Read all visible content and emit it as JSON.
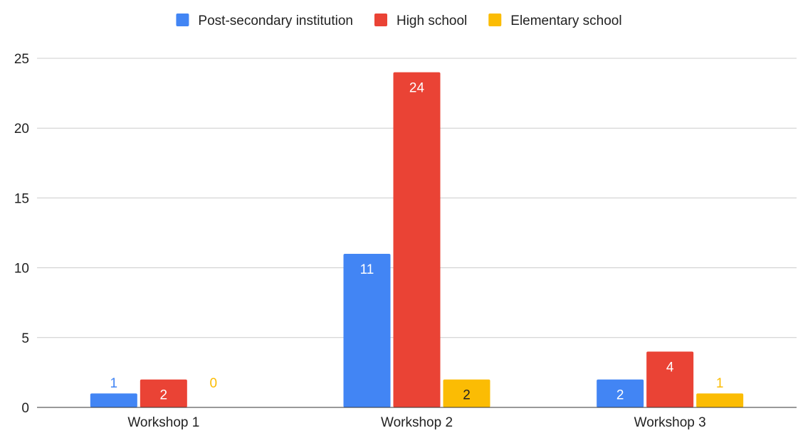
{
  "chart_data": {
    "type": "bar",
    "title": "",
    "xlabel": "",
    "ylabel": "",
    "categories": [
      "Workshop 1",
      "Workshop 2",
      "Workshop 3"
    ],
    "ylim": [
      0,
      25
    ],
    "yticks": [
      0,
      5,
      10,
      15,
      20,
      25
    ],
    "grid": true,
    "legend_position": "top",
    "series": [
      {
        "name": "Post-secondary institution",
        "color": "#4285f4",
        "values": [
          1,
          11,
          2
        ]
      },
      {
        "name": "High school",
        "color": "#ea4335",
        "values": [
          2,
          24,
          4
        ]
      },
      {
        "name": "Elementary school",
        "color": "#fbbc04",
        "values": [
          0,
          2,
          1
        ]
      }
    ]
  }
}
